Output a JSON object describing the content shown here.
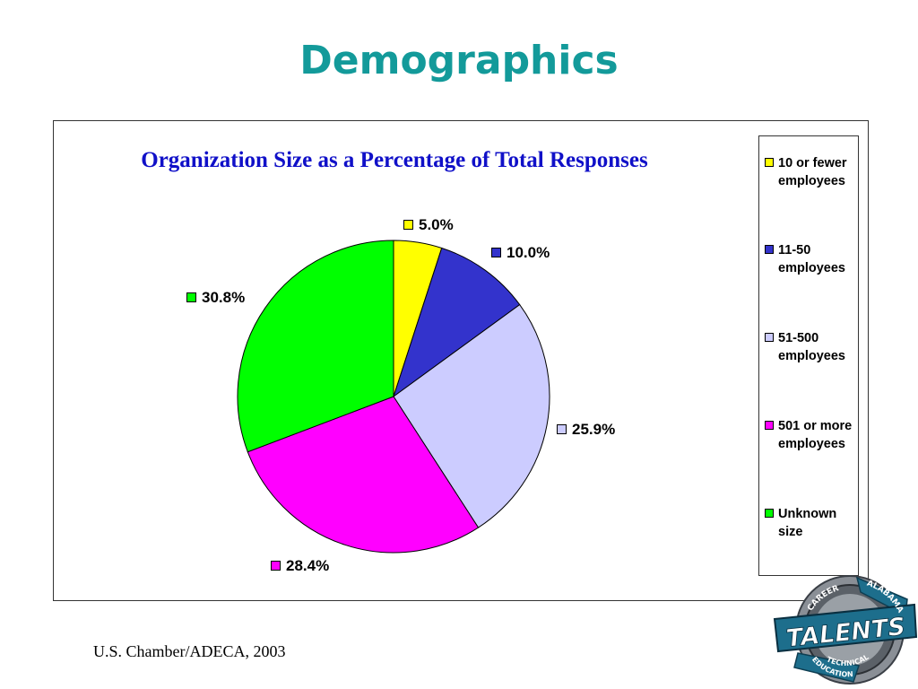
{
  "slide": {
    "title": "Demographics",
    "source": "U.S. Chamber/ADECA, 2003"
  },
  "chart_data": {
    "type": "pie",
    "title": "Organization Size as a Percentage of Total Responses",
    "categories": [
      "10 or fewer employees",
      "11-50 employees",
      "51-500 employees",
      "501 or more employees",
      "Unknown size"
    ],
    "values": [
      5.0,
      10.0,
      25.9,
      28.4,
      30.8
    ],
    "value_labels": [
      "5.0%",
      "10.0%",
      "25.9%",
      "28.4%",
      "30.8%"
    ],
    "colors": [
      "#ffff00",
      "#3333cc",
      "#ccccff",
      "#ff00ff",
      "#00ff00"
    ],
    "legend": {
      "placement": "right",
      "entries": [
        {
          "label": "10 or fewer employees",
          "color": "#ffff00"
        },
        {
          "label": "11-50 employees",
          "color": "#3333cc"
        },
        {
          "label": "51-500 employees",
          "color": "#ccccff"
        },
        {
          "label": "501 or more employees",
          "color": "#ff00ff"
        },
        {
          "label": "Unknown size",
          "color": "#00ff00"
        }
      ]
    }
  },
  "logo": {
    "text_main": "TALENTS",
    "text_top": "CAREER",
    "text_right": "ALABAMA",
    "text_lower": "TECHNICAL",
    "text_bottom": "EDUCATION"
  }
}
